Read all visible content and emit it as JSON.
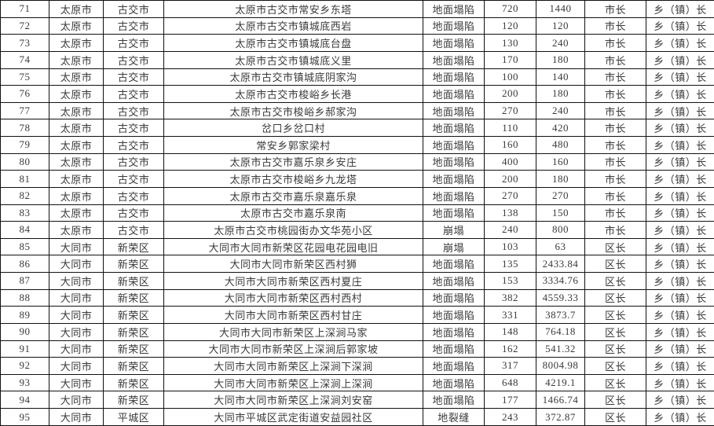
{
  "accent_colors": {
    "border": "#111111",
    "text": "#3a3a3a",
    "background": "#ffffff"
  },
  "table": {
    "column_names": [
      "row-index",
      "city",
      "district",
      "location",
      "hazard-type",
      "value-1",
      "value-2",
      "responsible-city-level",
      "responsible-town-level"
    ],
    "rows": [
      [
        "71",
        "太原市",
        "古交市",
        "太原市古交市常安乡东塔",
        "地面塌陷",
        "720",
        "1440",
        "市长",
        "乡（镇）长"
      ],
      [
        "72",
        "太原市",
        "古交市",
        "太原市古交市镇城底西岩",
        "地面塌陷",
        "120",
        "120",
        "市长",
        "乡（镇）长"
      ],
      [
        "73",
        "太原市",
        "古交市",
        "太原市古交市镇城底台盘",
        "地面塌陷",
        "130",
        "240",
        "市长",
        "乡（镇）长"
      ],
      [
        "74",
        "太原市",
        "古交市",
        "太原市古交市镇城底义里",
        "地面塌陷",
        "170",
        "180",
        "市长",
        "乡（镇）长"
      ],
      [
        "75",
        "太原市",
        "古交市",
        "太原市古交市镇城底阴家沟",
        "地面塌陷",
        "100",
        "140",
        "市长",
        "乡（镇）长"
      ],
      [
        "76",
        "太原市",
        "古交市",
        "太原市古交市梭峪乡长港",
        "地面塌陷",
        "200",
        "180",
        "市长",
        "乡（镇）长"
      ],
      [
        "77",
        "太原市",
        "古交市",
        "太原市古交市梭峪乡郝家沟",
        "地面塌陷",
        "270",
        "240",
        "市长",
        "乡（镇）长"
      ],
      [
        "78",
        "太原市",
        "古交市",
        "岔口乡岔口村",
        "地面塌陷",
        "110",
        "420",
        "市长",
        "乡（镇）长"
      ],
      [
        "79",
        "太原市",
        "古交市",
        "常安乡郭家梁村",
        "地面塌陷",
        "160",
        "480",
        "市长",
        "乡（镇）长"
      ],
      [
        "80",
        "太原市",
        "古交市",
        "太原市古交市嘉乐泉乡安庄",
        "地面塌陷",
        "400",
        "160",
        "市长",
        "乡（镇）长"
      ],
      [
        "81",
        "太原市",
        "古交市",
        "太原市古交市梭峪乡九龙塔",
        "地面塌陷",
        "200",
        "180",
        "市长",
        "乡（镇）长"
      ],
      [
        "82",
        "太原市",
        "古交市",
        "太原市古交市嘉乐泉嘉乐泉",
        "地面塌陷",
        "270",
        "270",
        "市长",
        "乡（镇）长"
      ],
      [
        "83",
        "太原市",
        "古交市",
        "太原市古交市嘉乐泉南",
        "地面塌陷",
        "138",
        "150",
        "市长",
        "乡（镇）长"
      ],
      [
        "84",
        "太原市",
        "古交市",
        "太原市古交市桃园街办文华苑小区",
        "崩塌",
        "240",
        "800",
        "市长",
        "乡（镇）长"
      ],
      [
        "85",
        "大同市",
        "新荣区",
        "大同市大同市新荣区花园电花园电旧",
        "崩塌",
        "103",
        "63",
        "区长",
        "乡（镇）长"
      ],
      [
        "86",
        "大同市",
        "新荣区",
        "大同市大同市新荣区西村狮",
        "地面塌陷",
        "135",
        "2433.84",
        "区长",
        "乡（镇）长"
      ],
      [
        "87",
        "大同市",
        "新荣区",
        "大同市大同市新荣区西村夏庄",
        "地面塌陷",
        "153",
        "3334.76",
        "区长",
        "乡（镇）长"
      ],
      [
        "88",
        "大同市",
        "新荣区",
        "大同市大同市新荣区西村西村",
        "地面塌陷",
        "382",
        "4559.33",
        "区长",
        "乡（镇）长"
      ],
      [
        "89",
        "大同市",
        "新荣区",
        "大同市大同市新荣区西村甘庄",
        "地面塌陷",
        "331",
        "3873.7",
        "区长",
        "乡（镇）长"
      ],
      [
        "90",
        "大同市",
        "新荣区",
        "大同市大同市新荣区上深涧马家",
        "地面塌陷",
        "148",
        "764.18",
        "区长",
        "乡（镇）长"
      ],
      [
        "91",
        "大同市",
        "新荣区",
        "大同市大同市新荣区上深涧后郭家坡",
        "地面塌陷",
        "162",
        "541.32",
        "区长",
        "乡（镇）长"
      ],
      [
        "92",
        "大同市",
        "新荣区",
        "大同市大同市新荣区上深涧下深涧",
        "地面塌陷",
        "317",
        "8004.98",
        "区长",
        "乡（镇）长"
      ],
      [
        "93",
        "大同市",
        "新荣区",
        "大同市大同市新荣区上深涧上深涧",
        "地面塌陷",
        "648",
        "4219.1",
        "区长",
        "乡（镇）长"
      ],
      [
        "94",
        "大同市",
        "新荣区",
        "大同市大同市新荣区上深涧刘安窑",
        "地面塌陷",
        "177",
        "1466.74",
        "区长",
        "乡（镇）长"
      ],
      [
        "95",
        "大同市",
        "平城区",
        "大同市平城区武定街道安益园社区",
        "地裂缝",
        "243",
        "372.87",
        "区长",
        "乡（镇）长"
      ]
    ]
  }
}
